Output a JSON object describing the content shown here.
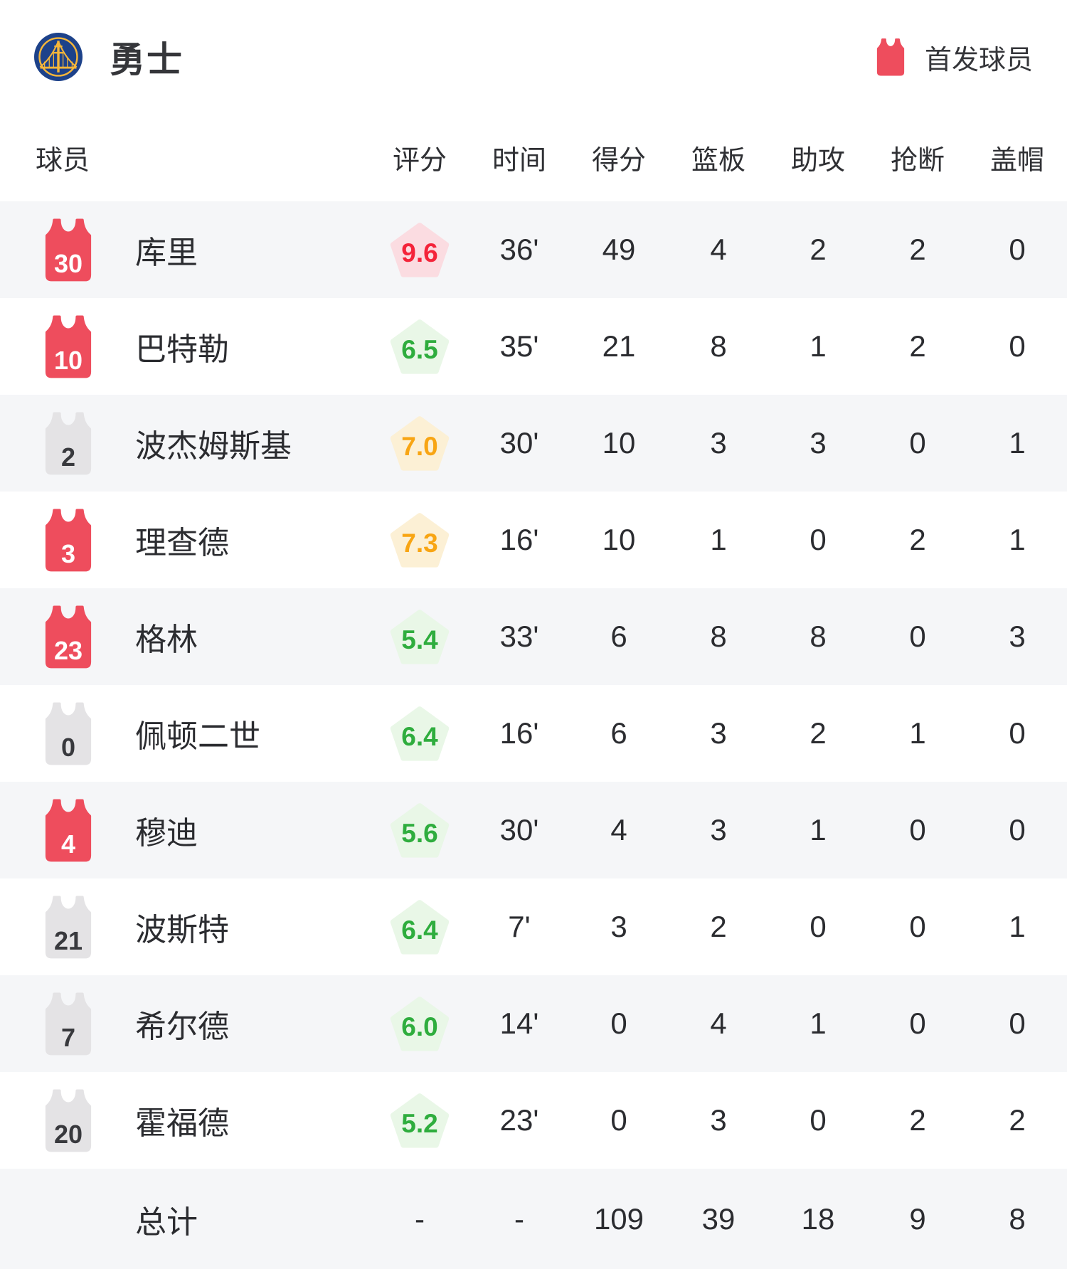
{
  "header": {
    "team_name": "勇士",
    "legend_label": "首发球员"
  },
  "table": {
    "columns": [
      "球员",
      "评分",
      "时间",
      "得分",
      "篮板",
      "助攻",
      "抢断",
      "盖帽"
    ],
    "players": [
      {
        "jersey_number": "30",
        "name": "库里",
        "starter": true,
        "rating": "9.6",
        "rating_level": "red",
        "stats": {
          "time": "36'",
          "points": "49",
          "rebounds": "4",
          "assists": "2",
          "steals": "2",
          "blocks": "0"
        }
      },
      {
        "jersey_number": "10",
        "name": "巴特勒",
        "starter": true,
        "rating": "6.5",
        "rating_level": "green",
        "stats": {
          "time": "35'",
          "points": "21",
          "rebounds": "8",
          "assists": "1",
          "steals": "2",
          "blocks": "0"
        }
      },
      {
        "jersey_number": "2",
        "name": "波杰姆斯基",
        "starter": false,
        "rating": "7.0",
        "rating_level": "orange",
        "stats": {
          "time": "30'",
          "points": "10",
          "rebounds": "3",
          "assists": "3",
          "steals": "0",
          "blocks": "1"
        }
      },
      {
        "jersey_number": "3",
        "name": "理查德",
        "starter": true,
        "rating": "7.3",
        "rating_level": "orange",
        "stats": {
          "time": "16'",
          "points": "10",
          "rebounds": "1",
          "assists": "0",
          "steals": "2",
          "blocks": "1"
        }
      },
      {
        "jersey_number": "23",
        "name": "格林",
        "starter": true,
        "rating": "5.4",
        "rating_level": "green",
        "stats": {
          "time": "33'",
          "points": "6",
          "rebounds": "8",
          "assists": "8",
          "steals": "0",
          "blocks": "3"
        }
      },
      {
        "jersey_number": "0",
        "name": "佩顿二世",
        "starter": false,
        "rating": "6.4",
        "rating_level": "green",
        "stats": {
          "time": "16'",
          "points": "6",
          "rebounds": "3",
          "assists": "2",
          "steals": "1",
          "blocks": "0"
        }
      },
      {
        "jersey_number": "4",
        "name": "穆迪",
        "starter": true,
        "rating": "5.6",
        "rating_level": "green",
        "stats": {
          "time": "30'",
          "points": "4",
          "rebounds": "3",
          "assists": "1",
          "steals": "0",
          "blocks": "0"
        }
      },
      {
        "jersey_number": "21",
        "name": "波斯特",
        "starter": false,
        "rating": "6.4",
        "rating_level": "green",
        "stats": {
          "time": "7'",
          "points": "3",
          "rebounds": "2",
          "assists": "0",
          "steals": "0",
          "blocks": "1"
        }
      },
      {
        "jersey_number": "7",
        "name": "希尔德",
        "starter": false,
        "rating": "6.0",
        "rating_level": "green",
        "stats": {
          "time": "14'",
          "points": "0",
          "rebounds": "4",
          "assists": "1",
          "steals": "0",
          "blocks": "0"
        }
      },
      {
        "jersey_number": "20",
        "name": "霍福德",
        "starter": false,
        "rating": "5.2",
        "rating_level": "green",
        "stats": {
          "time": "23'",
          "points": "0",
          "rebounds": "3",
          "assists": "0",
          "steals": "2",
          "blocks": "2"
        }
      }
    ],
    "total": {
      "label": "总计",
      "rating": "-",
      "time": "-",
      "points": "109",
      "rebounds": "39",
      "assists": "18",
      "steals": "9",
      "blocks": "8"
    }
  },
  "colors": {
    "text": "#2b2c30",
    "row_alt_bg": "#f5f6f8",
    "starter_red": "#ee4d5d",
    "bench_gray": "#e4e3e5",
    "rating_red_bg": "#fbdce1",
    "rating_red_text": "#f4243a",
    "rating_green_bg": "#e9f7e7",
    "rating_green_text": "#2fad3e",
    "rating_orange_bg": "#fcf0d5",
    "rating_orange_text": "#f8a513",
    "logo_blue": "#1d428a",
    "logo_gold": "#f5b63a"
  }
}
